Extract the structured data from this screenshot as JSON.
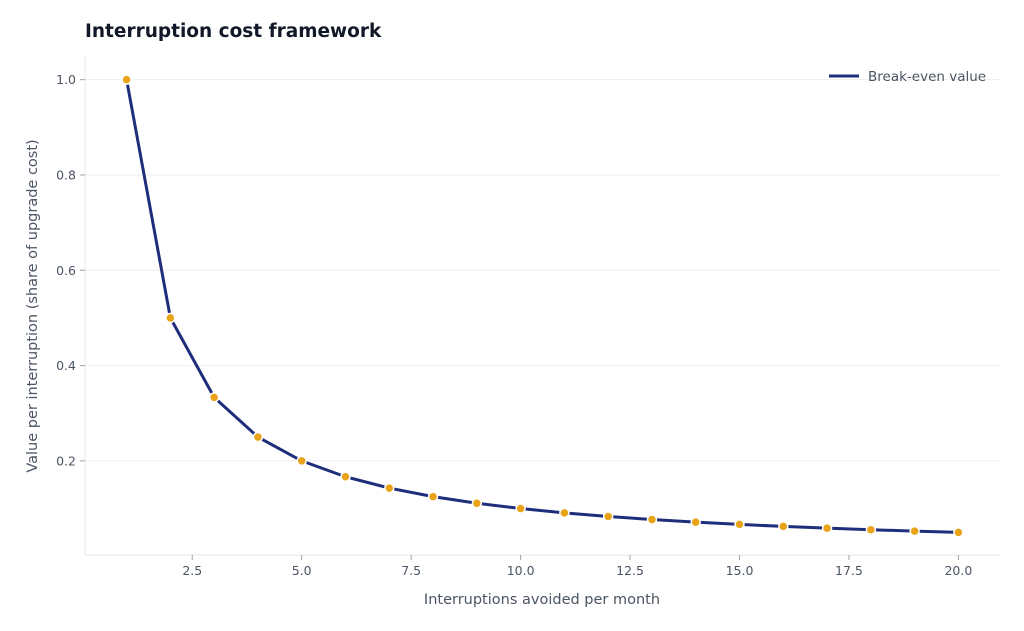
{
  "chart_data": {
    "type": "line",
    "title": "Interruption cost framework",
    "xlabel": "Interruptions avoided per month",
    "ylabel": "Value per interruption (share of upgrade cost)",
    "xlim": [
      0.05,
      20.95
    ],
    "ylim": [
      0.0025,
      1.0475
    ],
    "xticks": [
      2.5,
      5.0,
      7.5,
      10.0,
      12.5,
      15.0,
      17.5,
      20.0
    ],
    "xtick_labels": [
      "2.5",
      "5.0",
      "7.5",
      "10.0",
      "12.5",
      "15.0",
      "17.5",
      "20.0"
    ],
    "yticks": [
      0.2,
      0.4,
      0.6,
      0.8,
      1.0
    ],
    "ytick_labels": [
      "0.2",
      "0.4",
      "0.6",
      "0.8",
      "1.0"
    ],
    "grid": "horizontal",
    "legend_position": "top-right",
    "series": [
      {
        "name": "Break-even value",
        "line_color": "#1e2e7a",
        "marker_color": "#e8a318",
        "x": [
          1,
          2,
          3,
          4,
          5,
          6,
          7,
          8,
          9,
          10,
          11,
          12,
          13,
          14,
          15,
          16,
          17,
          18,
          19,
          20
        ],
        "y": [
          1.0,
          0.5,
          0.3333,
          0.25,
          0.2,
          0.1667,
          0.1429,
          0.125,
          0.1111,
          0.1,
          0.0909,
          0.0833,
          0.0769,
          0.0714,
          0.0667,
          0.0625,
          0.0588,
          0.0556,
          0.0526,
          0.05
        ]
      }
    ]
  }
}
